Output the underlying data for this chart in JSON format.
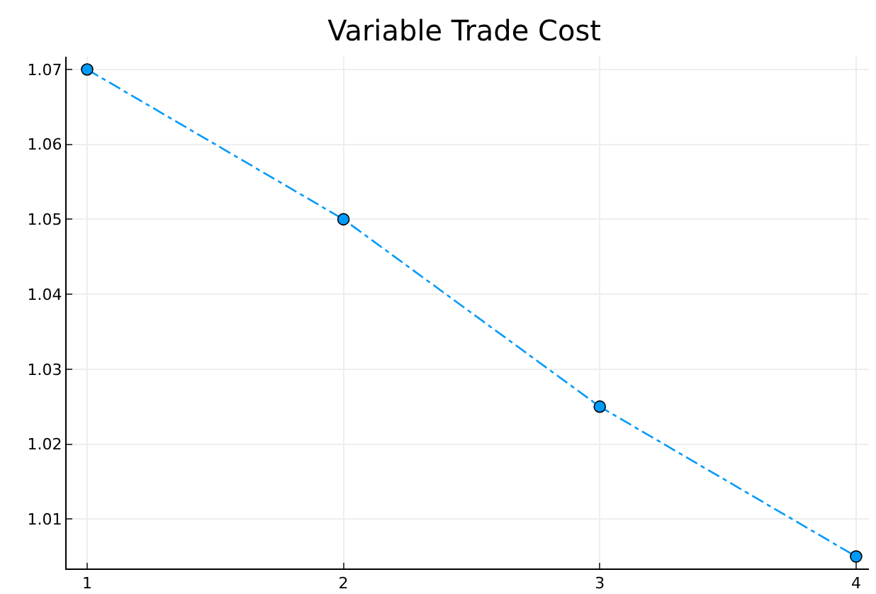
{
  "chart_data": {
    "type": "line",
    "title": "Variable Trade Cost",
    "x": [
      1,
      2,
      3,
      4
    ],
    "series": [
      {
        "color": "#009af9",
        "values": [
          1.07,
          1.05,
          1.025,
          1.005
        ]
      }
    ],
    "xlim": [
      0.92,
      4.05
    ],
    "xticks": [
      1,
      2,
      3,
      4
    ],
    "ylim": [
      1.0034,
      1.0717
    ],
    "yticks": [
      1.01,
      1.02,
      1.03,
      1.04,
      1.05,
      1.06,
      1.07
    ],
    "grid": true,
    "marker": "circle",
    "line_style": "dashdot",
    "legend": false
  }
}
